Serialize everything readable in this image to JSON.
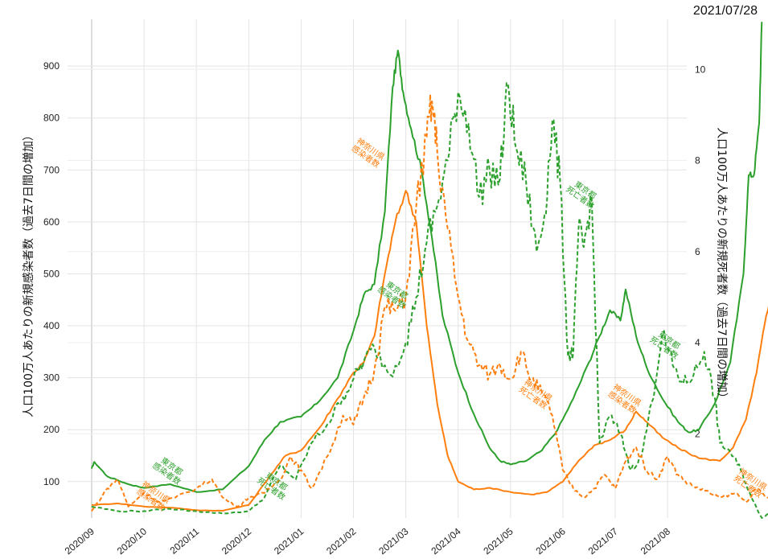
{
  "date_label": "2021/07/28",
  "chart_data": {
    "type": "line",
    "ylabel_left": "人口100万人あたりの新規感染者数（過去7日間の増加）",
    "ylabel_right": "人口100万人あたりの新規死者数（過去7日間の増加）",
    "x_ticks": [
      "2020/09",
      "2020/10",
      "2020/11",
      "2020/12",
      "2021/01",
      "2021/02",
      "2021/03",
      "2021/04",
      "2021/05",
      "2021/06",
      "2021/07",
      "2021/08"
    ],
    "y_left_ticks": [
      100,
      200,
      300,
      400,
      500,
      600,
      700,
      800,
      900
    ],
    "y_left_range": [
      30,
      990
    ],
    "y_right_ticks": [
      2,
      4,
      6,
      8,
      10
    ],
    "y_right_range": [
      0.15,
      11.1
    ],
    "grid": true,
    "colors": {
      "tokyo": "#2ca02c",
      "kanagawa": "#ff7f0e"
    },
    "series": [
      {
        "name": "東京都 感染者数",
        "axis": "left",
        "style": "solid",
        "color": "#2ca02c",
        "points": [
          [
            0,
            125
          ],
          [
            0.05,
            138
          ],
          [
            0.3,
            110
          ],
          [
            0.7,
            95
          ],
          [
            1.0,
            88
          ],
          [
            1.5,
            95
          ],
          [
            2.0,
            80
          ],
          [
            2.5,
            85
          ],
          [
            3.0,
            130
          ],
          [
            3.3,
            180
          ],
          [
            3.6,
            215
          ],
          [
            4.0,
            225
          ],
          [
            4.3,
            250
          ],
          [
            4.7,
            300
          ],
          [
            5.0,
            390
          ],
          [
            5.2,
            460
          ],
          [
            5.4,
            480
          ],
          [
            5.6,
            620
          ],
          [
            5.75,
            860
          ],
          [
            5.85,
            930
          ],
          [
            5.95,
            850
          ],
          [
            6.1,
            780
          ],
          [
            6.3,
            700
          ],
          [
            6.5,
            570
          ],
          [
            6.7,
            420
          ],
          [
            7.0,
            310
          ],
          [
            7.3,
            230
          ],
          [
            7.6,
            165
          ],
          [
            7.8,
            140
          ],
          [
            8.0,
            133
          ],
          [
            8.3,
            140
          ],
          [
            8.6,
            160
          ],
          [
            8.9,
            200
          ],
          [
            9.2,
            260
          ],
          [
            9.5,
            330
          ],
          [
            9.7,
            380
          ],
          [
            9.9,
            430
          ],
          [
            10.1,
            410
          ],
          [
            10.2,
            470
          ],
          [
            10.4,
            380
          ],
          [
            10.6,
            320
          ],
          [
            10.9,
            260
          ],
          [
            11.2,
            215
          ],
          [
            11.4,
            195
          ],
          [
            11.6,
            200
          ],
          [
            11.9,
            250
          ],
          [
            12.2,
            330
          ],
          [
            12.45,
            500
          ],
          [
            12.55,
            690
          ],
          [
            12.65,
            690
          ],
          [
            12.75,
            790
          ],
          [
            12.8,
            985
          ]
        ]
      },
      {
        "name": "神奈川県 感染者数",
        "axis": "left",
        "style": "solid",
        "color": "#ff7f0e",
        "points": [
          [
            0,
            55
          ],
          [
            0.5,
            58
          ],
          [
            1.0,
            52
          ],
          [
            1.5,
            50
          ],
          [
            2.0,
            45
          ],
          [
            2.5,
            44
          ],
          [
            3.0,
            55
          ],
          [
            3.4,
            110
          ],
          [
            3.7,
            150
          ],
          [
            4.0,
            160
          ],
          [
            4.4,
            210
          ],
          [
            4.7,
            260
          ],
          [
            5.0,
            310
          ],
          [
            5.2,
            330
          ],
          [
            5.4,
            380
          ],
          [
            5.6,
            500
          ],
          [
            5.8,
            600
          ],
          [
            6.0,
            660
          ],
          [
            6.2,
            600
          ],
          [
            6.4,
            400
          ],
          [
            6.6,
            250
          ],
          [
            6.8,
            150
          ],
          [
            7.0,
            100
          ],
          [
            7.3,
            85
          ],
          [
            7.6,
            88
          ],
          [
            8.0,
            80
          ],
          [
            8.4,
            75
          ],
          [
            8.7,
            80
          ],
          [
            9.0,
            100
          ],
          [
            9.3,
            140
          ],
          [
            9.6,
            170
          ],
          [
            9.9,
            180
          ],
          [
            10.2,
            200
          ],
          [
            10.4,
            235
          ],
          [
            10.6,
            215
          ],
          [
            10.9,
            185
          ],
          [
            11.2,
            165
          ],
          [
            11.6,
            145
          ],
          [
            12.0,
            140
          ],
          [
            12.25,
            165
          ],
          [
            12.5,
            220
          ],
          [
            12.7,
            310
          ],
          [
            12.85,
            400
          ],
          [
            12.95,
            450
          ],
          [
            13.0,
            510
          ]
        ]
      },
      {
        "name": "東京都 死者数",
        "axis": "right",
        "style": "dashed",
        "color": "#2ca02c",
        "points": [
          [
            0,
            0.4
          ],
          [
            0.5,
            0.3
          ],
          [
            1.0,
            0.3
          ],
          [
            1.5,
            0.35
          ],
          [
            2.0,
            0.3
          ],
          [
            2.5,
            0.25
          ],
          [
            3.0,
            0.3
          ],
          [
            3.3,
            0.6
          ],
          [
            3.6,
            1.3
          ],
          [
            3.9,
            1.0
          ],
          [
            4.2,
            1.8
          ],
          [
            4.5,
            2.2
          ],
          [
            4.8,
            2.8
          ],
          [
            5.0,
            3.2
          ],
          [
            5.2,
            3.6
          ],
          [
            5.4,
            3.9
          ],
          [
            5.7,
            3.3
          ],
          [
            6.0,
            4.0
          ],
          [
            6.2,
            5.0
          ],
          [
            6.4,
            6.2
          ],
          [
            6.6,
            7.0
          ],
          [
            6.8,
            8.0
          ],
          [
            7.0,
            9.5
          ],
          [
            7.2,
            8.8
          ],
          [
            7.4,
            7.2
          ],
          [
            7.6,
            7.8
          ],
          [
            7.8,
            7.6
          ],
          [
            7.95,
            9.7
          ],
          [
            8.1,
            8.3
          ],
          [
            8.3,
            7.5
          ],
          [
            8.5,
            6.0
          ],
          [
            8.65,
            6.8
          ],
          [
            8.8,
            8.9
          ],
          [
            8.95,
            7.5
          ],
          [
            9.1,
            3.7
          ],
          [
            9.2,
            3.8
          ],
          [
            9.3,
            6.5
          ],
          [
            9.4,
            6.1
          ],
          [
            9.55,
            7.2
          ],
          [
            9.7,
            1.8
          ],
          [
            9.9,
            2.4
          ],
          [
            10.1,
            2.0
          ],
          [
            10.3,
            1.2
          ],
          [
            10.5,
            1.5
          ],
          [
            10.7,
            2.7
          ],
          [
            10.9,
            4.2
          ],
          [
            11.1,
            3.5
          ],
          [
            11.3,
            3.1
          ],
          [
            11.5,
            3.3
          ],
          [
            11.7,
            3.8
          ],
          [
            11.9,
            2.8
          ],
          [
            12.0,
            1.8
          ],
          [
            12.2,
            1.6
          ],
          [
            12.4,
            1.2
          ],
          [
            12.6,
            0.6
          ],
          [
            12.8,
            0.15
          ],
          [
            13.0,
            0.3
          ]
        ]
      },
      {
        "name": "神奈川県 死者数",
        "axis": "right",
        "style": "dashed",
        "color": "#ff7f0e",
        "points": [
          [
            0,
            0.3
          ],
          [
            0.3,
            0.8
          ],
          [
            0.5,
            1.0
          ],
          [
            0.7,
            0.4
          ],
          [
            1.0,
            0.7
          ],
          [
            1.3,
            0.5
          ],
          [
            1.6,
            0.6
          ],
          [
            2.0,
            0.8
          ],
          [
            2.3,
            1.0
          ],
          [
            2.5,
            0.6
          ],
          [
            2.8,
            0.4
          ],
          [
            3.0,
            0.6
          ],
          [
            3.3,
            0.7
          ],
          [
            3.6,
            1.0
          ],
          [
            3.8,
            1.5
          ],
          [
            4.0,
            1.2
          ],
          [
            4.2,
            0.8
          ],
          [
            4.5,
            1.5
          ],
          [
            4.8,
            2.4
          ],
          [
            5.0,
            2.2
          ],
          [
            5.2,
            2.8
          ],
          [
            5.4,
            3.4
          ],
          [
            5.6,
            4.8
          ],
          [
            5.8,
            4.7
          ],
          [
            6.0,
            5.0
          ],
          [
            6.2,
            7.0
          ],
          [
            6.4,
            8.5
          ],
          [
            6.5,
            9.3
          ],
          [
            6.6,
            8.2
          ],
          [
            6.8,
            6.5
          ],
          [
            7.0,
            5.0
          ],
          [
            7.2,
            4.0
          ],
          [
            7.4,
            3.5
          ],
          [
            7.6,
            3.3
          ],
          [
            7.8,
            3.5
          ],
          [
            8.0,
            3.2
          ],
          [
            8.2,
            3.8
          ],
          [
            8.4,
            3.2
          ],
          [
            8.6,
            2.9
          ],
          [
            8.8,
            2.4
          ],
          [
            9.0,
            1.2
          ],
          [
            9.2,
            0.8
          ],
          [
            9.4,
            0.6
          ],
          [
            9.6,
            0.8
          ],
          [
            9.8,
            1.1
          ],
          [
            10.0,
            0.8
          ],
          [
            10.2,
            1.4
          ],
          [
            10.4,
            1.7
          ],
          [
            10.6,
            1.2
          ],
          [
            10.8,
            1.0
          ],
          [
            11.0,
            1.5
          ],
          [
            11.2,
            1.1
          ],
          [
            11.4,
            0.9
          ],
          [
            11.6,
            0.8
          ],
          [
            11.8,
            0.7
          ],
          [
            12.0,
            0.6
          ],
          [
            12.3,
            0.7
          ],
          [
            12.5,
            0.5
          ],
          [
            12.7,
            0.8
          ],
          [
            12.9,
            0.6
          ],
          [
            13.0,
            0.5
          ]
        ]
      }
    ],
    "annotations": [
      {
        "text": "東京都\n感染者数",
        "color": "#2ca02c",
        "x": 1.5,
        "y": 125,
        "axis": "left"
      },
      {
        "text": "神奈川県\n感染者数",
        "color": "#ff7f0e",
        "x": 1.2,
        "y": 75,
        "axis": "left"
      },
      {
        "text": "東京都\n死亡者数",
        "color": "#2ca02c",
        "x": 3.5,
        "y": 0.9,
        "axis": "right"
      },
      {
        "text": "神奈川県\n感染者数",
        "color": "#ff7f0e",
        "x": 5.3,
        "y": 8.2,
        "axis": "right"
      },
      {
        "text": "東京都\n感染者数",
        "color": "#2ca02c",
        "x": 5.8,
        "y": 5.1,
        "axis": "right"
      },
      {
        "text": "東京都\n死亡者数",
        "color": "#2ca02c",
        "x": 9.4,
        "y": 7.3,
        "axis": "right"
      },
      {
        "text": "神奈川県\n死亡者数",
        "color": "#ff7f0e",
        "x": 8.5,
        "y": 2.9,
        "axis": "right"
      },
      {
        "text": "神奈川県\n感染者数",
        "color": "#ff7f0e",
        "x": 10.2,
        "y": 2.8,
        "axis": "right"
      },
      {
        "text": "東京都\n死亡者数",
        "color": "#2ca02c",
        "x": 11.0,
        "y": 4.0,
        "axis": "right"
      },
      {
        "text": "神奈川県\n死亡者数",
        "color": "#ff7f0e",
        "x": 12.6,
        "y": 0.95,
        "axis": "right"
      }
    ]
  }
}
